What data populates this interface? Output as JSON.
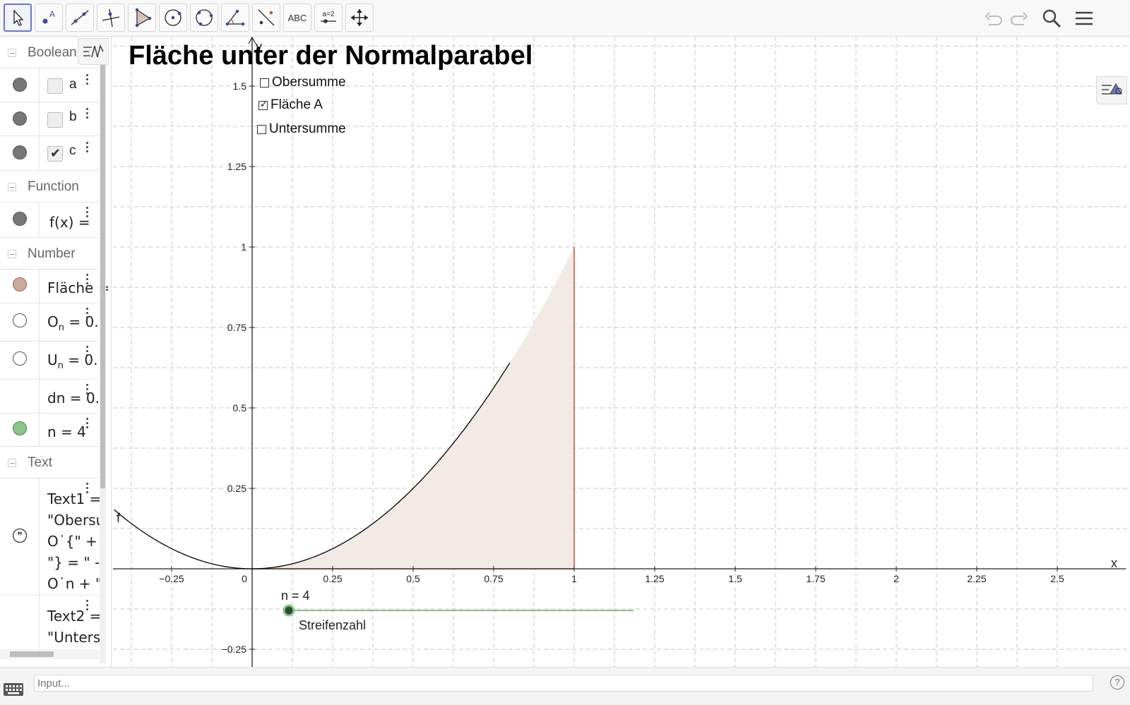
{
  "toolbar": {
    "tools": [
      "move-tool",
      "point-tool",
      "line-tool",
      "perpendicular-line-tool",
      "polygon-tool",
      "circle-center-point-tool",
      "circle-three-points-tool",
      "angle-tool",
      "reflect-tool",
      "text-tool",
      "slider-tool",
      "move-graphics-view-tool"
    ],
    "text_tool_label": "ABC",
    "slider_tool_label": "a=2",
    "right": [
      "undo-icon",
      "redo-icon",
      "search-icon",
      "menu-icon"
    ]
  },
  "algebra": {
    "sections": {
      "boolean": "Boolean",
      "function": "Function",
      "number": "Number",
      "text": "Text"
    },
    "booleans": [
      {
        "name": "a",
        "checked": false
      },
      {
        "name": "b",
        "checked": false
      },
      {
        "name": "c",
        "checked": true
      }
    ],
    "function_item": "f(x) =",
    "numbers": {
      "flaeche": "Fläche =",
      "on_base": "O",
      "on_sub": "n",
      "on_rest": " = 0.",
      "un_base": "U",
      "un_sub": "n",
      "un_rest": " = 0.",
      "dn": "dn = 0.",
      "n": "n = 4"
    },
    "text1_lines": [
      "Text1 =",
      "\"Obersu",
      "O˙{\" +",
      "\"} = \" -",
      "O˙n + \""
    ],
    "text2_lines": [
      "Text2 =",
      "\"Unters"
    ]
  },
  "graphics": {
    "title": "Fläche unter der Normalparabel",
    "checkboxes": [
      {
        "label": "Obersumme",
        "checked": false
      },
      {
        "label": "Fläche A",
        "checked": true
      },
      {
        "label": "Untersumme",
        "checked": false
      }
    ],
    "x_ticks": [
      "−0.25",
      "0",
      "0.25",
      "0.5",
      "0.75",
      "1",
      "1.25",
      "1.5",
      "1.75",
      "2",
      "2.25",
      "2.5"
    ],
    "y_ticks": [
      "−0.25",
      "0.25",
      "0.5",
      "0.75",
      "1",
      "1.25",
      "1.5"
    ],
    "x_axis_label": "x",
    "y_axis_label": "y",
    "function_label": "f",
    "slider": {
      "label": "n = 4",
      "caption": "Streifenzahl",
      "value": 4
    },
    "colors": {
      "area_fill": "#f3e8e2",
      "area_edge": "#c0573a",
      "curve": "#000000",
      "grid": "#c8c8c8",
      "slider": "#6aa86a"
    }
  },
  "input": {
    "placeholder": "Input..."
  }
}
